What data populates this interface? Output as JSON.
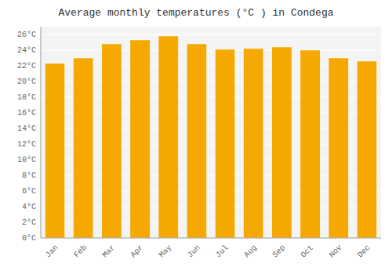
{
  "chart_data": {
    "type": "bar",
    "title": "Average monthly temperatures (°C ) in Condega",
    "categories": [
      "Jan",
      "Feb",
      "Mar",
      "Apr",
      "May",
      "Jun",
      "Jul",
      "Aug",
      "Sep",
      "Oct",
      "Nov",
      "Dec"
    ],
    "values": [
      22.3,
      23.0,
      24.8,
      25.3,
      25.8,
      24.8,
      24.1,
      24.2,
      24.4,
      24.0,
      23.0,
      22.6
    ],
    "color": "#F5A800",
    "ylim": [
      0,
      27
    ],
    "yticks": [
      {
        "value": 0,
        "label": "0°C"
      },
      {
        "value": 2,
        "label": "2°C"
      },
      {
        "value": 4,
        "label": "4°C"
      },
      {
        "value": 6,
        "label": "6°C"
      },
      {
        "value": 8,
        "label": "8°C"
      },
      {
        "value": 10,
        "label": "10°C"
      },
      {
        "value": 12,
        "label": "12°C"
      },
      {
        "value": 14,
        "label": "14°C"
      },
      {
        "value": 16,
        "label": "16°C"
      },
      {
        "value": 18,
        "label": "18°C"
      },
      {
        "value": 20,
        "label": "20°C"
      },
      {
        "value": 22,
        "label": "22°C"
      },
      {
        "value": 24,
        "label": "24°C"
      },
      {
        "value": 26,
        "label": "26°C"
      }
    ],
    "grid": true
  }
}
